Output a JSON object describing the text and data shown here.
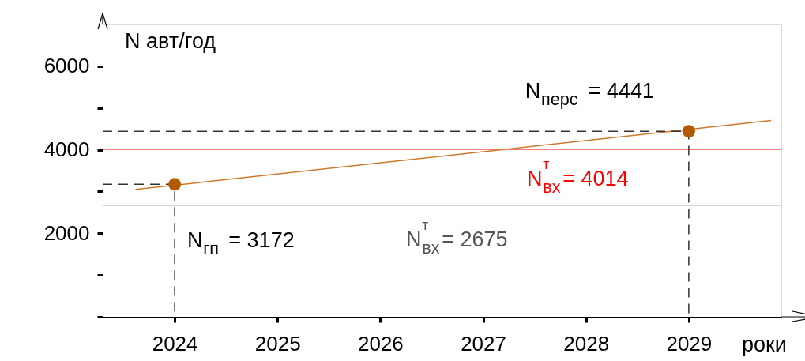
{
  "chart_data": {
    "type": "line",
    "xlabel": "роки",
    "ylabel": "N авт/год",
    "xlim": [
      2023.3,
      2029.9
    ],
    "ylim": [
      0,
      7000
    ],
    "xticks": [
      2024,
      2025,
      2026,
      2027,
      2028,
      2029
    ],
    "yticks": [
      {
        "value": 0,
        "label": null
      },
      {
        "value": 1000,
        "label": null
      },
      2000,
      {
        "value": 3000,
        "label": null
      },
      4000,
      {
        "value": 5000,
        "label": null
      },
      6000
    ],
    "grid": false,
    "series": [
      {
        "color": "#cc7a2a",
        "x": [
          2023.62,
          2029.8
        ],
        "values": [
          3050,
          4700
        ],
        "marker": "none",
        "line_style": "solid"
      },
      {
        "color": "#333333",
        "line_style": "dashed",
        "marker": "none",
        "x": [
          2023.3,
          2024,
          2024
        ],
        "values": [
          3172,
          3172,
          0
        ]
      },
      {
        "color": "#333333",
        "line_style": "dashed",
        "marker": "none",
        "x": [
          2023.3,
          2029,
          2029
        ],
        "values": [
          4441,
          4441,
          0
        ]
      },
      {
        "type": "scatter",
        "color": "#b35a00",
        "x": [
          2024,
          2029
        ],
        "values": [
          3172,
          4441
        ],
        "marker": "circle"
      }
    ],
    "ref_lines": [
      {
        "axis": "y",
        "value": 4014,
        "label": "N$^{т}$$_{вх}$= 4014",
        "color": "#ff0000"
      },
      {
        "axis": "y",
        "value": 2675,
        "label": "N$^{т}$$_{вх}$= 2675",
        "color": "#555555"
      }
    ],
    "annotations": [
      {
        "text": "N$_{перс}$ = 4441",
        "x": 2029,
        "y": 4441
      },
      {
        "text": "N$_{гп}$ = 3172",
        "x": 2024,
        "y": 3172
      }
    ]
  }
}
